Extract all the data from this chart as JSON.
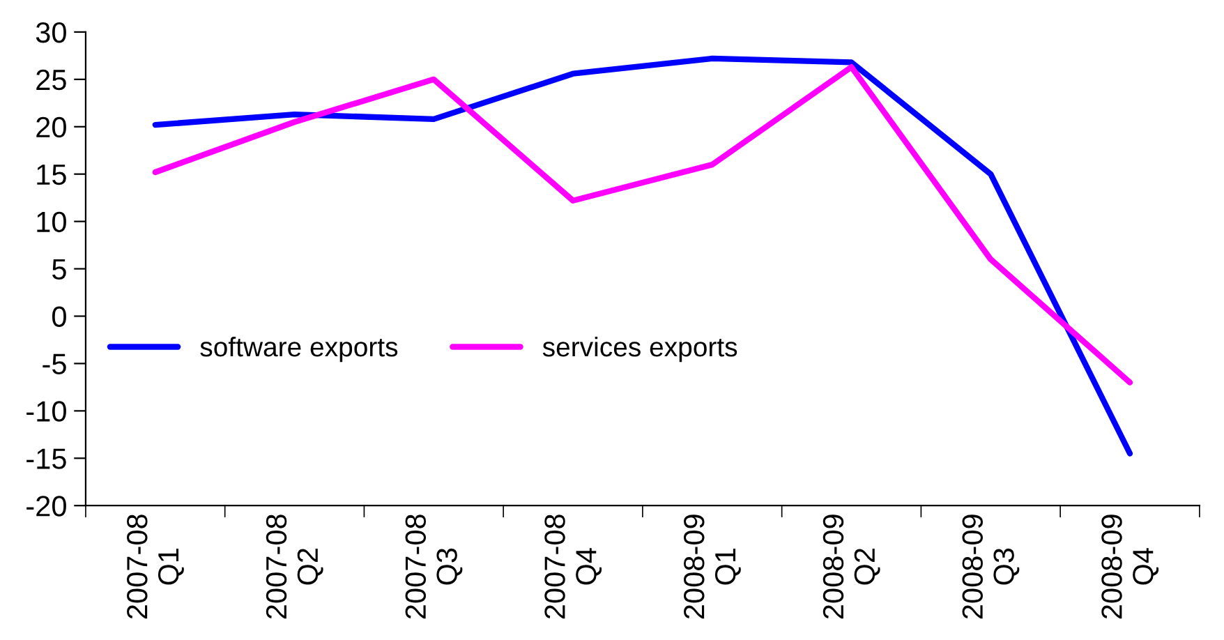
{
  "chart_data": {
    "type": "line",
    "categories": [
      "2007-08\nQ1",
      "2007-08\nQ2",
      "2007-08\nQ3",
      "2007-08\nQ4",
      "2008-09\nQ1",
      "2008-09\nQ2",
      "2008-09\nQ3",
      "2008-09\nQ4"
    ],
    "series": [
      {
        "name": "software exports",
        "color": "#0000ff",
        "values": [
          20.2,
          21.3,
          20.8,
          25.6,
          27.2,
          26.8,
          15.0,
          -14.5
        ]
      },
      {
        "name": "services exports",
        "color": "#ff00ff",
        "values": [
          15.2,
          20.5,
          25.0,
          12.2,
          16.0,
          26.3,
          6.0,
          -7.0
        ]
      }
    ],
    "ylim": [
      -20,
      30
    ],
    "yticks": [
      -20,
      -15,
      -10,
      -5,
      0,
      5,
      10,
      15,
      20,
      25,
      30
    ],
    "legend": "left",
    "grid": false,
    "marker": "none",
    "line_style": "solid"
  }
}
